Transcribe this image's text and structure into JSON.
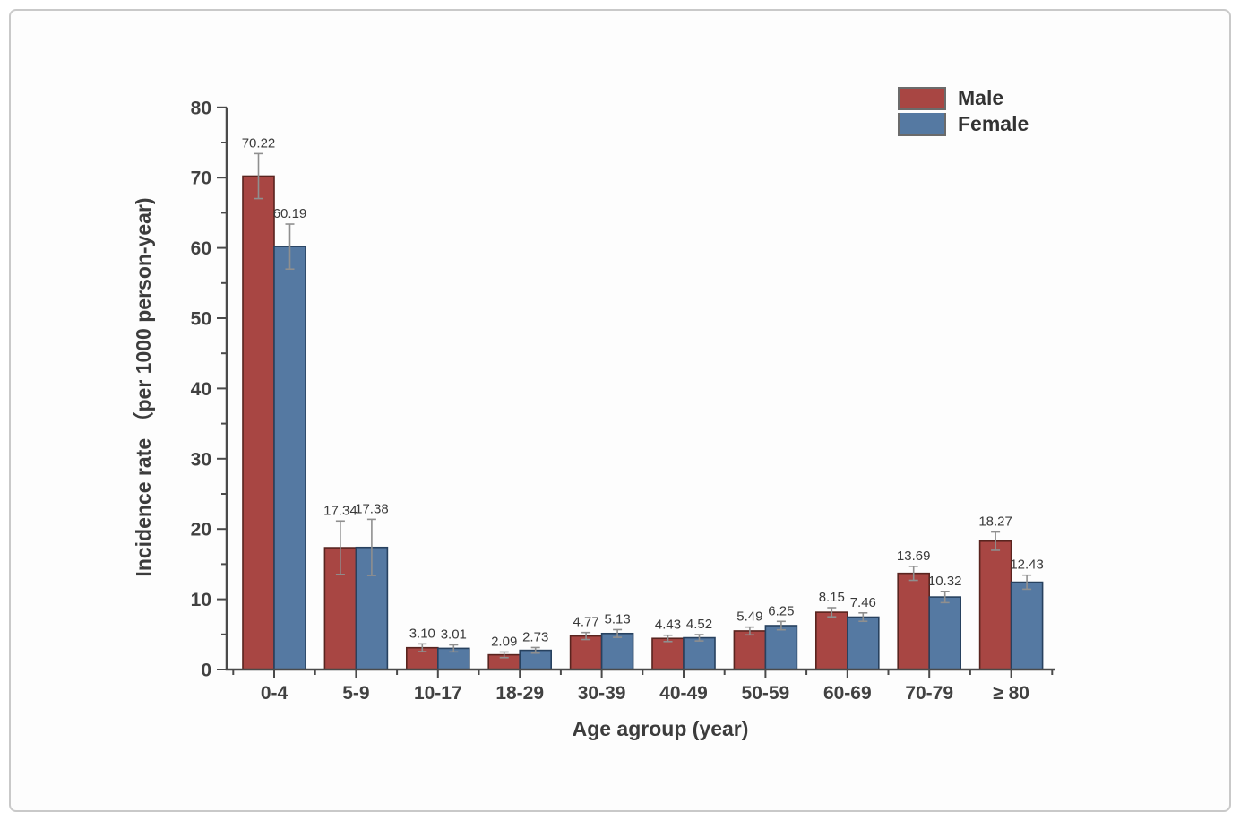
{
  "figure": {
    "background": "#fdfdfd",
    "frame_color": "#c9c9c9"
  },
  "chart_data": {
    "type": "bar",
    "title": "",
    "xlabel": "Age agroup (year)",
    "ylabel": "Incidence rate （per 1000 person-year)",
    "categories": [
      "0-4",
      "5-9",
      "10-17",
      "18-29",
      "30-39",
      "40-49",
      "50-59",
      "60-69",
      "70-79",
      "≥ 80"
    ],
    "series": [
      {
        "name": "Male",
        "color": "#a84643",
        "edge_color": "#59241f",
        "values": [
          70.22,
          17.34,
          3.1,
          2.09,
          4.77,
          4.43,
          5.49,
          8.15,
          13.69,
          18.27
        ],
        "value_labels": [
          "70.22",
          "17.34",
          "3.10",
          "2.09",
          "4.77",
          "4.43",
          "5.49",
          "8.15",
          "13.69",
          "18.27"
        ],
        "errors": [
          3.2,
          3.8,
          0.55,
          0.4,
          0.5,
          0.45,
          0.55,
          0.65,
          1.0,
          1.3
        ]
      },
      {
        "name": "Female",
        "color": "#5579a2",
        "edge_color": "#27415f",
        "values": [
          60.19,
          17.38,
          3.01,
          2.73,
          5.13,
          4.52,
          6.25,
          7.46,
          10.32,
          12.43
        ],
        "value_labels": [
          "60.19",
          "17.38",
          "3.01",
          "2.73",
          "5.13",
          "4.52",
          "6.25",
          "7.46",
          "10.32",
          "12.43"
        ],
        "errors": [
          3.2,
          4.0,
          0.5,
          0.4,
          0.55,
          0.45,
          0.6,
          0.6,
          0.8,
          1.0
        ]
      }
    ],
    "ylim": [
      0,
      80
    ],
    "y_ticks": [
      0,
      10,
      20,
      30,
      40,
      50,
      60,
      70,
      80
    ],
    "y_minor_step": 5,
    "grid": false,
    "legend_position": "top-right",
    "error_bar_color": "#8f8f8f",
    "axis_color": "#4a4a4a"
  }
}
